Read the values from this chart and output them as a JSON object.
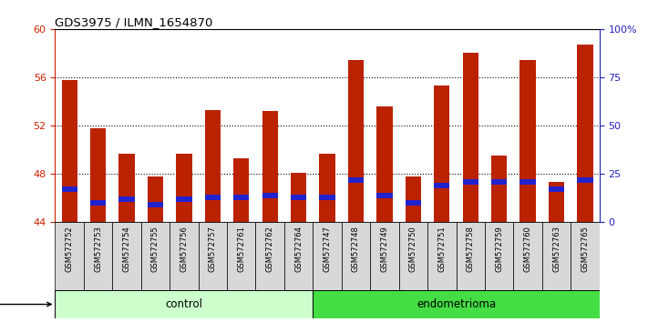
{
  "title": "GDS3975 / ILMN_1654870",
  "samples": [
    "GSM572752",
    "GSM572753",
    "GSM572754",
    "GSM572755",
    "GSM572756",
    "GSM572757",
    "GSM572761",
    "GSM572762",
    "GSM572764",
    "GSM572747",
    "GSM572748",
    "GSM572749",
    "GSM572750",
    "GSM572751",
    "GSM572758",
    "GSM572759",
    "GSM572760",
    "GSM572763",
    "GSM572765"
  ],
  "counts": [
    55.8,
    51.8,
    49.7,
    47.8,
    49.7,
    53.3,
    49.3,
    53.2,
    48.1,
    49.7,
    57.4,
    53.6,
    47.8,
    55.3,
    58.0,
    49.5,
    57.4,
    47.3,
    58.7
  ],
  "percentiles": [
    17,
    10,
    12,
    9,
    12,
    13,
    13,
    14,
    13,
    13,
    22,
    14,
    10,
    19,
    21,
    21,
    21,
    17,
    22
  ],
  "group": [
    "control",
    "control",
    "control",
    "control",
    "control",
    "control",
    "control",
    "control",
    "control",
    "endometrioma",
    "endometrioma",
    "endometrioma",
    "endometrioma",
    "endometrioma",
    "endometrioma",
    "endometrioma",
    "endometrioma",
    "endometrioma",
    "endometrioma"
  ],
  "ylim_left": [
    44,
    60
  ],
  "yticks_left": [
    44,
    48,
    52,
    56,
    60
  ],
  "ylim_right": [
    0,
    100
  ],
  "yticks_right": [
    0,
    25,
    50,
    75,
    100
  ],
  "bar_color": "#bb2200",
  "percentile_color": "#2222cc",
  "control_color": "#ccffcc",
  "endometrioma_color": "#44dd44",
  "bg_plot": "#ffffff",
  "label_bg": "#d8d8d8",
  "left_axis_color": "#cc2200",
  "right_axis_color": "#2222bb",
  "grid_color": "#000000",
  "bar_width": 0.55,
  "base_value": 44,
  "n_control": 9,
  "n_endo": 10
}
